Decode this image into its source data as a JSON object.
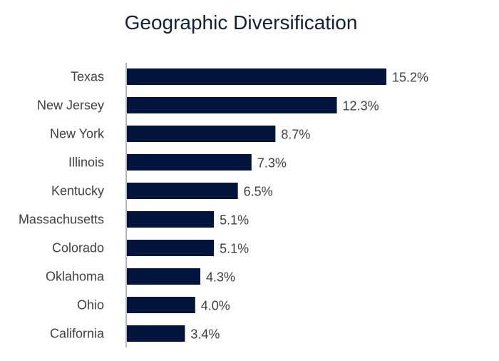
{
  "chart_data": {
    "type": "bar",
    "orientation": "horizontal",
    "title": "Geographic Diversification",
    "categories": [
      "Texas",
      "New Jersey",
      "New York",
      "Illinois",
      "Kentucky",
      "Massachusetts",
      "Colorado",
      "Oklahoma",
      "Ohio",
      "California"
    ],
    "values": [
      15.2,
      12.3,
      8.7,
      7.3,
      6.5,
      5.1,
      5.1,
      4.3,
      4.0,
      3.4
    ],
    "data_labels": [
      "15.2%",
      "12.3%",
      "8.7%",
      "7.3%",
      "6.5%",
      "5.1%",
      "5.1%",
      "4.3%",
      "4.0%",
      "3.4%"
    ],
    "xlabel": "",
    "ylabel": "",
    "grid": false,
    "bar_color": "#01143c",
    "axis_color": "#a0a0a0"
  }
}
